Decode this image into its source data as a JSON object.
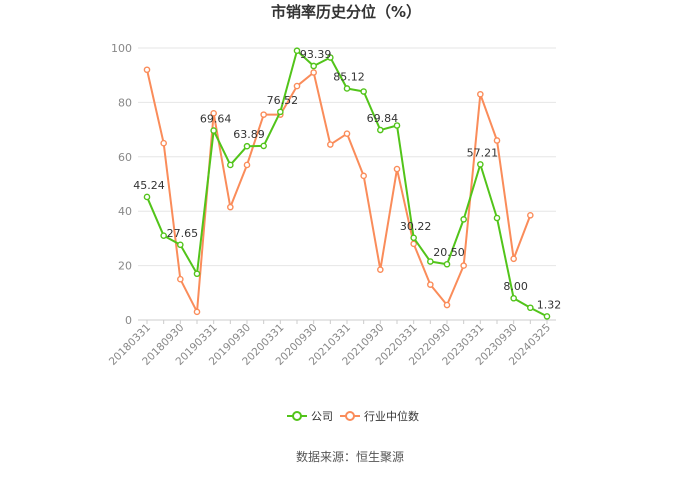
{
  "chart_data": {
    "type": "line",
    "title": "市销率历史分位（%）",
    "source": "数据来源：恒生聚源",
    "ylim": [
      0,
      100
    ],
    "y_ticks": [
      0,
      20,
      40,
      60,
      80,
      100
    ],
    "x_tick_labels": [
      "20180331",
      "20180930",
      "20190331",
      "20190930",
      "20200331",
      "20200930",
      "20210331",
      "20210930",
      "20220331",
      "20220930",
      "20230331",
      "20230930",
      "20240325"
    ],
    "x": [
      "20180331",
      "20180630",
      "20180930",
      "20181231",
      "20190331",
      "20190630",
      "20190930",
      "20191231",
      "20200331",
      "20200630",
      "20200930",
      "20201231",
      "20210331",
      "20210630",
      "20210930",
      "20211231",
      "20220331",
      "20220630",
      "20220930",
      "20221231",
      "20230331",
      "20230630",
      "20230930",
      "20231231",
      "20240325"
    ],
    "grid": true,
    "legend_position": "bottom",
    "series": [
      {
        "name": "公司",
        "color": "#52c41a",
        "values": [
          45.24,
          31,
          27.65,
          17,
          69.64,
          57,
          63.89,
          64,
          76.52,
          99,
          93.39,
          96.5,
          85.12,
          84,
          69.84,
          71.5,
          30.22,
          21.5,
          20.5,
          37,
          57.21,
          37.5,
          8.0,
          4.5,
          1.32
        ],
        "point_labels": [
          {
            "index": 0,
            "text": "45.24"
          },
          {
            "index": 2,
            "text": "27.65"
          },
          {
            "index": 4,
            "text": "69.64"
          },
          {
            "index": 6,
            "text": "63.89"
          },
          {
            "index": 8,
            "text": "76.52"
          },
          {
            "index": 10,
            "text": "93.39"
          },
          {
            "index": 12,
            "text": "85.12"
          },
          {
            "index": 14,
            "text": "69.84"
          },
          {
            "index": 16,
            "text": "30.22"
          },
          {
            "index": 18,
            "text": "20.50"
          },
          {
            "index": 20,
            "text": "57.21"
          },
          {
            "index": 22,
            "text": "8.00"
          },
          {
            "index": 24,
            "text": "1.32"
          }
        ]
      },
      {
        "name": "行业中位数",
        "color": "#fa8c5a",
        "values": [
          92,
          65,
          15,
          3,
          76,
          41.5,
          57,
          75.5,
          75.5,
          86,
          91,
          64.5,
          68.5,
          53,
          18.5,
          55.5,
          28,
          13,
          5.5,
          20,
          83,
          66,
          22.5,
          38.5,
          null
        ]
      }
    ]
  }
}
